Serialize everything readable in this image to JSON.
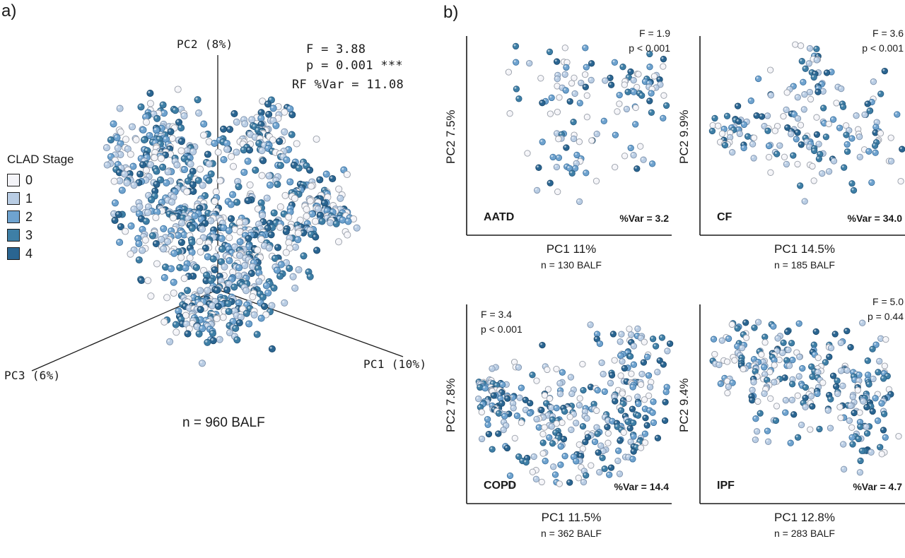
{
  "panels": {
    "a_label": "a)",
    "b_label": "b)"
  },
  "pca3d": {
    "stats": {
      "F": "F = 3.88",
      "p": "p = 0.001 ***",
      "rf": "RF %Var = 11.08"
    },
    "axes": {
      "pc1": "PC1 (10%)",
      "pc2": "PC2 (8%)",
      "pc3": "PC3 (6%)"
    },
    "n_label": "n = 960 BALF"
  },
  "legend": {
    "title": "CLAD Stage",
    "items": [
      {
        "label": "0",
        "color": "#f4f4f8"
      },
      {
        "label": "1",
        "color": "#b9cde4"
      },
      {
        "label": "2",
        "color": "#6fa3cf"
      },
      {
        "label": "3",
        "color": "#3e7fa6"
      },
      {
        "label": "4",
        "color": "#2a6591"
      }
    ]
  },
  "subplots": [
    {
      "name": "AATD",
      "F": "F = 1.9",
      "p": "p < 0.001",
      "var": "%Var = 3.2",
      "xlabel": "PC1 11%",
      "ylabel": "PC2 7.5%",
      "n": "n = 130 BALF",
      "stats_side": "right"
    },
    {
      "name": "CF",
      "F": "F = 3.6",
      "p": "p < 0.001",
      "var": "%Var = 34.0",
      "xlabel": "PC1 14.5%",
      "ylabel": "PC2 9.9%",
      "n": "n = 185 BALF",
      "stats_side": "right"
    },
    {
      "name": "COPD",
      "F": "F = 3.4",
      "p": "p < 0.001",
      "var": "%Var = 14.4",
      "xlabel": "PC1 11.5%",
      "ylabel": "PC2 7.8%",
      "n": "n = 362 BALF",
      "stats_side": "left"
    },
    {
      "name": "IPF",
      "F": "F = 5.0",
      "p": "p = 0.44",
      "var": "%Var = 4.7",
      "xlabel": "PC1 12.8%",
      "ylabel": "PC2 9.4%",
      "n": "n = 283 BALF",
      "stats_side": "right"
    }
  ],
  "chart_data": [
    {
      "type": "scatter",
      "dimensions": 3,
      "title": "",
      "n_points": 960,
      "axes": [
        "PC1 (10%)",
        "PC2 (8%)",
        "PC3 (6%)"
      ],
      "series": [
        {
          "name": "0"
        },
        {
          "name": "1"
        },
        {
          "name": "2"
        },
        {
          "name": "3"
        },
        {
          "name": "4"
        }
      ],
      "legend_position": "left"
    },
    {
      "type": "scatter",
      "panel": "AATD",
      "xlabel": "PC1 11%",
      "ylabel": "PC2 7.5%",
      "n_points": 130,
      "grid": false
    },
    {
      "type": "scatter",
      "panel": "CF",
      "xlabel": "PC1 14.5%",
      "ylabel": "PC2 9.9%",
      "n_points": 185,
      "grid": false
    },
    {
      "type": "scatter",
      "panel": "COPD",
      "xlabel": "PC1 11.5%",
      "ylabel": "PC2 7.8%",
      "n_points": 362,
      "grid": false
    },
    {
      "type": "scatter",
      "panel": "IPF",
      "xlabel": "PC1 12.8%",
      "ylabel": "PC2 9.4%",
      "n_points": 283,
      "grid": false
    }
  ]
}
